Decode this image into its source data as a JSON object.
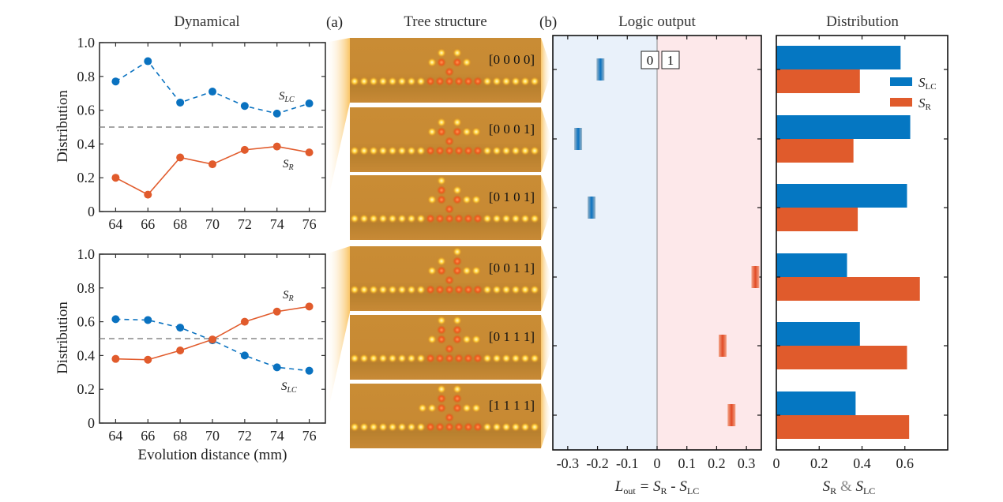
{
  "panel_labels": {
    "a": "(a)",
    "b": "(b)"
  },
  "chart_data": [
    {
      "id": "dynamical-top",
      "type": "line",
      "title": "Dynamical",
      "xlabel": "",
      "ylabel": "Distribution",
      "x": [
        64,
        66,
        68,
        70,
        72,
        74,
        76
      ],
      "xlim": [
        63,
        77
      ],
      "ylim": [
        0,
        1.0
      ],
      "xticks": [
        "64",
        "66",
        "68",
        "70",
        "72",
        "74",
        "76"
      ],
      "yticks": [
        "0",
        "0.2",
        "0.4",
        "0.6",
        "0.8",
        "1.0"
      ],
      "reference_line": 0.5,
      "series": [
        {
          "name": "S_LC",
          "label_main": "S",
          "label_sub": "LC",
          "color": "#0a72c0",
          "style": "dashed",
          "values": [
            0.77,
            0.89,
            0.645,
            0.71,
            0.625,
            0.58,
            0.64
          ]
        },
        {
          "name": "S_R",
          "label_main": "S",
          "label_sub": "R",
          "color": "#e15b2c",
          "style": "solid",
          "values": [
            0.2,
            0.1,
            0.32,
            0.28,
            0.365,
            0.385,
            0.35
          ]
        }
      ]
    },
    {
      "id": "dynamical-bottom",
      "type": "line",
      "title": "",
      "xlabel": "Evolution distance (mm)",
      "ylabel": "Distribution",
      "x": [
        64,
        66,
        68,
        70,
        72,
        74,
        76
      ],
      "xlim": [
        63,
        77
      ],
      "ylim": [
        0,
        1.0
      ],
      "xticks": [
        "64",
        "66",
        "68",
        "70",
        "72",
        "74",
        "76"
      ],
      "yticks": [
        "0",
        "0.2",
        "0.4",
        "0.6",
        "0.8",
        "1.0"
      ],
      "reference_line": 0.5,
      "series": [
        {
          "name": "S_LC",
          "label_main": "S",
          "label_sub": "LC",
          "color": "#0a72c0",
          "style": "dashed",
          "values": [
            0.615,
            0.61,
            0.565,
            0.49,
            0.4,
            0.33,
            0.31
          ]
        },
        {
          "name": "S_R",
          "label_main": "S",
          "label_sub": "R",
          "color": "#e15b2c",
          "style": "solid",
          "values": [
            0.38,
            0.375,
            0.43,
            0.495,
            0.6,
            0.66,
            0.69
          ]
        }
      ]
    },
    {
      "id": "tree-structure",
      "type": "table",
      "title": "Tree structure",
      "rows": [
        {
          "code": "[0 0 0 0]",
          "bits": [
            0,
            0,
            0,
            0
          ]
        },
        {
          "code": "[0 0 0 1]",
          "bits": [
            0,
            0,
            0,
            1
          ]
        },
        {
          "code": "[0 1 0 1]",
          "bits": [
            0,
            1,
            0,
            1
          ]
        },
        {
          "code": "[0 0 1 1]",
          "bits": [
            0,
            0,
            1,
            1
          ]
        },
        {
          "code": "[0 1 1 1]",
          "bits": [
            0,
            1,
            1,
            1
          ]
        },
        {
          "code": "[1 1 1 1]",
          "bits": [
            1,
            1,
            1,
            1
          ]
        }
      ]
    },
    {
      "id": "logic-output",
      "type": "scatter",
      "title": "Logic output",
      "xlabel_main": "L",
      "xlabel_sub": "out",
      "xlabel_rest": " = S",
      "xlabel_r": "R",
      "xlabel_minus": " - S",
      "xlabel_lc": "LC",
      "xlim": [
        -0.35,
        0.35
      ],
      "xticks": [
        -0.3,
        -0.2,
        -0.1,
        0,
        0.1,
        0.2,
        0.3
      ],
      "xtick_labels": [
        "-0.3",
        "-0.2",
        "-0.1",
        "0",
        "0.1",
        "0.2",
        "0.3"
      ],
      "region_labels": [
        "0",
        "1"
      ],
      "region_colors": {
        "negative": "#e9f1fa",
        "positive": "#fde8ea"
      },
      "values": [
        -0.19,
        -0.265,
        -0.22,
        0.33,
        0.22,
        0.25
      ],
      "colors": {
        "negative": "#0a72c0",
        "positive": "#e15b2c"
      }
    },
    {
      "id": "distribution-bars",
      "type": "bar",
      "orientation": "horizontal",
      "title": "Distribution",
      "xlabel_parts": [
        "S",
        "R",
        " & ",
        "S",
        "LC"
      ],
      "xlim": [
        0,
        0.8
      ],
      "xticks": [
        0,
        0.2,
        0.4,
        0.6
      ],
      "xtick_labels": [
        "0",
        "0.2",
        "0.4",
        "0.6"
      ],
      "legend": "top-right",
      "categories": [
        "[0 0 0 0]",
        "[0 0 0 1]",
        "[0 1 0 1]",
        "[0 0 1 1]",
        "[0 1 1 1]",
        "[1 1 1 1]"
      ],
      "series": [
        {
          "name": "S_LC",
          "label_main": "S",
          "label_sub": "LC",
          "color": "#0577c2",
          "values": [
            0.58,
            0.625,
            0.61,
            0.33,
            0.39,
            0.37
          ]
        },
        {
          "name": "S_R",
          "label_main": "S",
          "label_sub": "R",
          "color": "#e05b2c",
          "values": [
            0.39,
            0.36,
            0.38,
            0.67,
            0.61,
            0.62
          ]
        }
      ]
    }
  ]
}
